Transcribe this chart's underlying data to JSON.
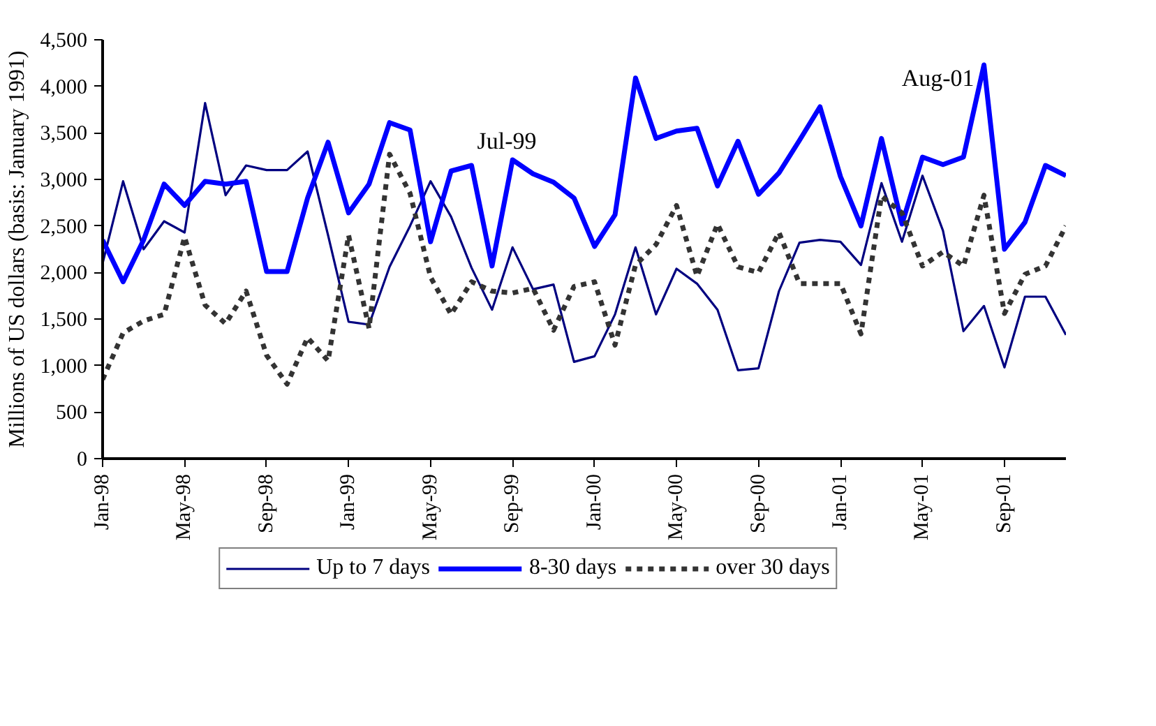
{
  "chart_data": {
    "type": "line",
    "ylabel": "Millions of US dollars (basis: January 1991)",
    "x": [
      "1998-01",
      "1998-02",
      "1998-03",
      "1998-04",
      "1998-05",
      "1998-06",
      "1998-07",
      "1998-08",
      "1998-09",
      "1998-10",
      "1998-11",
      "1998-12",
      "1999-01",
      "1999-02",
      "1999-03",
      "1999-04",
      "1999-05",
      "1999-06",
      "1999-07",
      "1999-08",
      "1999-09",
      "1999-10",
      "1999-11",
      "1999-12",
      "2000-01",
      "2000-02",
      "2000-03",
      "2000-04",
      "2000-05",
      "2000-06",
      "2000-07",
      "2000-08",
      "2000-09",
      "2000-10",
      "2000-11",
      "2000-12",
      "2001-01",
      "2001-02",
      "2001-03",
      "2001-04",
      "2001-05",
      "2001-06",
      "2001-07",
      "2001-08",
      "2001-09",
      "2001-10",
      "2001-11",
      "2001-12"
    ],
    "series": [
      {
        "name": "Up to 7 days",
        "color": "#000080",
        "line_style": "solid",
        "values": [
          2100,
          2980,
          2250,
          2550,
          2430,
          3820,
          2830,
          3150,
          3100,
          3100,
          3300,
          2400,
          1470,
          1440,
          2060,
          2500,
          2980,
          2600,
          2050,
          1600,
          2270,
          1820,
          1870,
          1040,
          1100,
          1550,
          2270,
          1550,
          2040,
          1880,
          1600,
          950,
          970,
          1800,
          2320,
          2350,
          2330,
          2080,
          2960,
          2330,
          3040,
          2450,
          1370,
          1640,
          980,
          1740,
          1740,
          1330
        ]
      },
      {
        "name": "8-30 days",
        "color": "#0000ff",
        "line_style": "solid",
        "values": [
          2350,
          1900,
          2350,
          2950,
          2720,
          2980,
          2950,
          2980,
          2010,
          2010,
          2800,
          3400,
          2640,
          2950,
          3610,
          3530,
          2330,
          3090,
          3150,
          2070,
          3210,
          3060,
          2970,
          2800,
          2280,
          2620,
          4090,
          3440,
          3520,
          3550,
          2930,
          3410,
          2840,
          3070,
          3420,
          3780,
          3030,
          2500,
          3440,
          2520,
          3240,
          3160,
          3240,
          4230,
          2250,
          2540,
          3150,
          3040
        ]
      },
      {
        "name": "over 30 days",
        "color": "#333333",
        "line_style": "dashed",
        "values": [
          850,
          1350,
          1480,
          1550,
          2380,
          1650,
          1450,
          1800,
          1110,
          800,
          1300,
          1050,
          2400,
          1400,
          3270,
          2850,
          1950,
          1550,
          1900,
          1800,
          1780,
          1830,
          1380,
          1850,
          1900,
          1220,
          2080,
          2300,
          2720,
          1960,
          2520,
          2060,
          2000,
          2430,
          1880,
          1880,
          1880,
          1340,
          2820,
          2640,
          2070,
          2220,
          2070,
          2830,
          1560,
          1980,
          2070,
          2500
        ]
      }
    ],
    "xlim": [
      "1998-01",
      "2001-12"
    ],
    "xticks": [
      {
        "value": "1998-01",
        "label": "Jan-98"
      },
      {
        "value": "1998-05",
        "label": "May-98"
      },
      {
        "value": "1998-09",
        "label": "Sep-98"
      },
      {
        "value": "1999-01",
        "label": "Jan-99"
      },
      {
        "value": "1999-05",
        "label": "May-99"
      },
      {
        "value": "1999-09",
        "label": "Sep-99"
      },
      {
        "value": "2000-01",
        "label": "Jan-00"
      },
      {
        "value": "2000-05",
        "label": "May-00"
      },
      {
        "value": "2000-09",
        "label": "Sep-00"
      },
      {
        "value": "2001-01",
        "label": "Jan-01"
      },
      {
        "value": "2001-05",
        "label": "May-01"
      },
      {
        "value": "2001-09",
        "label": "Sep-01"
      }
    ],
    "ylim": [
      0,
      4500
    ],
    "yticks": [
      0,
      500,
      {
        "value": 1000,
        "label": "1,000"
      },
      {
        "value": 1500,
        "label": "1,500"
      },
      {
        "value": 2000,
        "label": "2,000"
      },
      {
        "value": 2500,
        "label": "2,500"
      },
      {
        "value": 3000,
        "label": "3,000"
      },
      {
        "value": 3500,
        "label": "3,500"
      },
      {
        "value": 4000,
        "label": "4,000"
      },
      {
        "value": 4500,
        "label": "4,500"
      }
    ],
    "annotations": [
      {
        "text": "Jul-99",
        "x": "1999-07",
        "y": 3150
      },
      {
        "text": "Aug-01",
        "x": "2001-08",
        "y": 4230
      }
    ],
    "grid": false,
    "legend": "bottom",
    "marker": "none"
  }
}
